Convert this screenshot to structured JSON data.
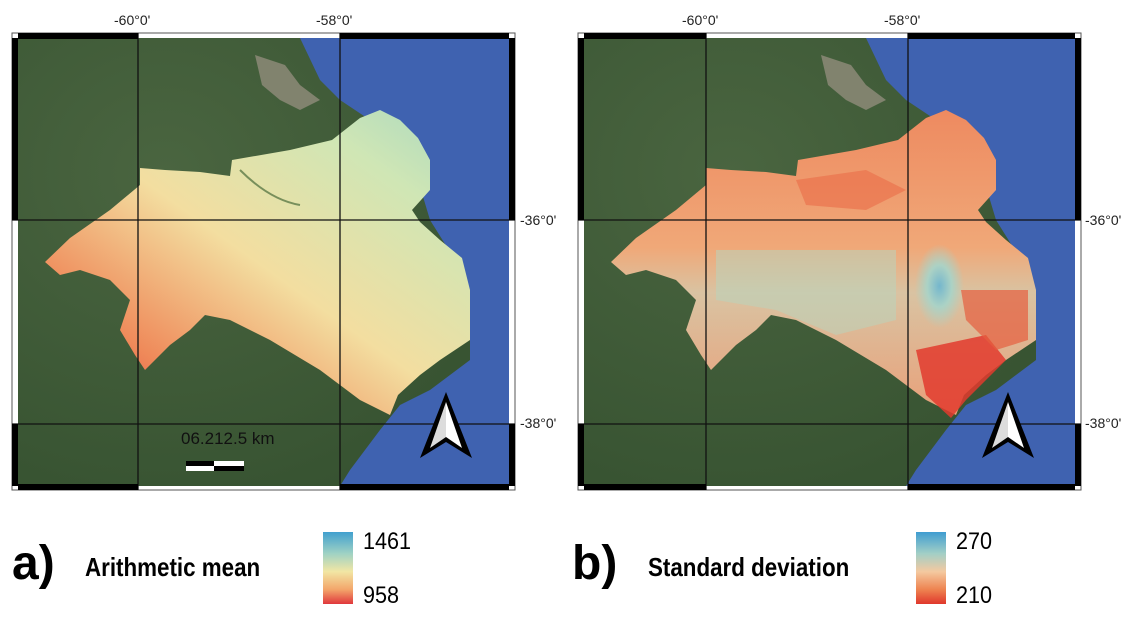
{
  "colors": {
    "land": "#3f5a36",
    "sea": "#3f62b0",
    "mean_low": "#e0373c",
    "mean_mid": "#f2e6a4",
    "mean_high": "#41a0cf",
    "sd_low": "#e0372c",
    "sd_mid": "#f4c9a0",
    "sd_high": "#3f9dd1"
  },
  "panels": [
    {
      "letter": "a)",
      "title": "Arithmetic mean",
      "legend_max": "1461",
      "legend_min": "958",
      "scale_label": "06.212.5 km",
      "lon_labels": [
        "-60°0'",
        "-58°0'"
      ],
      "lat_labels": [
        "-36°0'",
        "-38°0'"
      ],
      "north_arrow_icon": "north-arrow-icon"
    },
    {
      "letter": "b)",
      "title": "Standard deviation",
      "legend_max": "270",
      "legend_min": "210",
      "lon_labels": [
        "-60°0'",
        "-58°0'"
      ],
      "lat_labels": [
        "-36°0'",
        "-38°0'"
      ],
      "north_arrow_icon": "north-arrow-icon"
    }
  ]
}
